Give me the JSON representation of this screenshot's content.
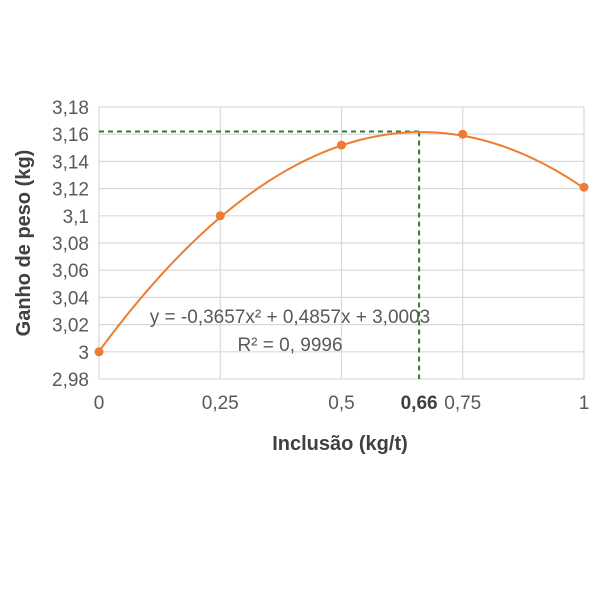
{
  "chart_data": {
    "type": "scatter",
    "xlabel": "Inclusão (kg/t)",
    "ylabel": "Ganho de peso (kg)",
    "xlim": [
      0,
      1
    ],
    "ylim": [
      2.98,
      3.18
    ],
    "grid": true,
    "x_ticks": [
      "0",
      "0,25",
      "0,5",
      "0,75",
      "1"
    ],
    "x_tick_values": [
      0,
      0.25,
      0.5,
      0.75,
      1
    ],
    "y_ticks": [
      "2,98",
      "3",
      "3,02",
      "3,04",
      "3,06",
      "3,08",
      "3,1",
      "3,12",
      "3,14",
      "3,16",
      "3,18"
    ],
    "y_tick_values": [
      2.98,
      3.0,
      3.02,
      3.04,
      3.06,
      3.08,
      3.1,
      3.12,
      3.14,
      3.16,
      3.18
    ],
    "series": [
      {
        "x": [
          0,
          0.25,
          0.5,
          0.75,
          1
        ],
        "y": [
          3.0,
          3.1,
          3.152,
          3.16,
          3.121
        ]
      }
    ],
    "trendline": {
      "type": "polynomial",
      "coefficients": [
        -0.3657,
        0.4857,
        3.0003
      ],
      "equation": "y = -0,3657x² + 0,4857x + 3,0003",
      "r2_label": "R² = 0, 9996"
    },
    "optimum": {
      "x": 0.66,
      "y": 3.162,
      "x_label": "0,66"
    },
    "colors": {
      "series": "#ED7D31",
      "guide": "#2E7D32",
      "grid": "#D9D9D9",
      "text": "#595959"
    }
  }
}
